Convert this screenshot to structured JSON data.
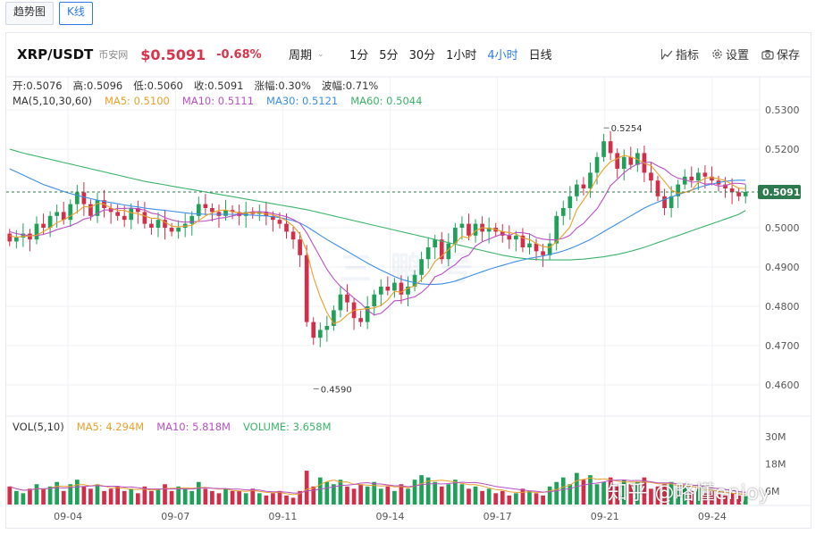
{
  "tabs": [
    {
      "label": "趋势图",
      "active": false
    },
    {
      "label": "K线",
      "active": true
    }
  ],
  "header": {
    "symbol": "XRP/USDT",
    "exchange": "币安网",
    "price": "$0.5091",
    "change": "-0.68%",
    "period_label": "周期",
    "intervals": [
      {
        "label": "1分",
        "active": false
      },
      {
        "label": "5分",
        "active": false
      },
      {
        "label": "30分",
        "active": false
      },
      {
        "label": "1小时",
        "active": false
      },
      {
        "label": "4小时",
        "active": true
      },
      {
        "label": "日线",
        "active": false
      }
    ],
    "tools": [
      {
        "label": "指标",
        "icon": "chart-line-icon"
      },
      {
        "label": "设置",
        "icon": "gear-icon"
      },
      {
        "label": "保存",
        "icon": "camera-icon"
      }
    ]
  },
  "ohlc": [
    {
      "label": "开:0.5076"
    },
    {
      "label": "高:0.5096"
    },
    {
      "label": "低:0.5060"
    },
    {
      "label": "收:0.5091"
    },
    {
      "label": "涨幅:0.30%"
    },
    {
      "label": "波幅:0.71%"
    }
  ],
  "ma_legend": [
    {
      "label": "MA(5,10,30,60)",
      "color": "#333333"
    },
    {
      "label": "MA5: 0.5100",
      "color": "#e8a02b"
    },
    {
      "label": "MA10: 0.5111",
      "color": "#b94fc4"
    },
    {
      "label": "MA30: 0.5121",
      "color": "#3d8ee3"
    },
    {
      "label": "MA60: 0.5044",
      "color": "#3bb36a"
    }
  ],
  "vol_legend": [
    {
      "label": "VOL(5,10)",
      "color": "#333333"
    },
    {
      "label": "MA5: 4.294M",
      "color": "#e8a02b"
    },
    {
      "label": "MA10: 5.818M",
      "color": "#b94fc4"
    },
    {
      "label": "VOLUME: 3.658M",
      "color": "#3bb36a"
    }
  ],
  "background_mark": "三 鹏 号",
  "watermark": "知乎 @略懂enjoy",
  "colors": {
    "up": "#21a05a",
    "down": "#d22e4a",
    "ma5": "#e8a02b",
    "ma10": "#b94fc4",
    "ma30": "#3d8ee3",
    "ma60": "#3bb36a",
    "current": "#2c7a4d"
  },
  "chart_data": {
    "type": "candlestick",
    "title": "XRP/USDT 4小时",
    "x_tick_labels": [
      "09-04",
      "09-07",
      "09-11",
      "09-14",
      "09-17",
      "09-21",
      "09-24"
    ],
    "y_ticks": [
      "0.5300",
      "0.5200",
      "0.5100",
      "0.5000",
      "0.4900",
      "0.4800",
      "0.4700",
      "0.4600"
    ],
    "ylim": [
      0.456,
      0.534
    ],
    "current_price_label": "0.5091",
    "current_price": 0.5091,
    "high_annotation": {
      "label": "0.5254",
      "value": 0.5254
    },
    "low_annotation": {
      "label": "0.4590",
      "value": 0.459
    },
    "volume_ticks": [
      "30M",
      "18M",
      "6M"
    ],
    "volume_ylim": [
      0,
      36
    ],
    "closes": [
      0.4965,
      0.4975,
      0.4985,
      0.497,
      0.501,
      0.5,
      0.503,
      0.504,
      0.502,
      0.506,
      0.509,
      0.506,
      0.503,
      0.507,
      0.505,
      0.504,
      0.503,
      0.502,
      0.505,
      0.504,
      0.501,
      0.5,
      0.502,
      0.5,
      0.499,
      0.5,
      0.501,
      0.503,
      0.506,
      0.505,
      0.504,
      0.503,
      0.5045,
      0.504,
      0.503,
      0.504,
      0.5035,
      0.504,
      0.503,
      0.502,
      0.501,
      0.499,
      0.497,
      0.493,
      0.476,
      0.472,
      0.474,
      0.475,
      0.479,
      0.483,
      0.481,
      0.477,
      0.476,
      0.48,
      0.483,
      0.485,
      0.484,
      0.486,
      0.483,
      0.485,
      0.488,
      0.492,
      0.495,
      0.497,
      0.492,
      0.496,
      0.5,
      0.501,
      0.498,
      0.501,
      0.499,
      0.5,
      0.499,
      0.498,
      0.497,
      0.498,
      0.495,
      0.496,
      0.494,
      0.493,
      0.496,
      0.503,
      0.505,
      0.508,
      0.511,
      0.51,
      0.514,
      0.518,
      0.522,
      0.519,
      0.515,
      0.518,
      0.516,
      0.519,
      0.514,
      0.512,
      0.508,
      0.505,
      0.508,
      0.511,
      0.513,
      0.512,
      0.514,
      0.513,
      0.512,
      0.511,
      0.51,
      0.509,
      0.508,
      0.5091
    ],
    "volumes": [
      8,
      6,
      5,
      7,
      9,
      7,
      8,
      10,
      6,
      9,
      11,
      8,
      7,
      9,
      6,
      7,
      8,
      6,
      7,
      5,
      8,
      6,
      7,
      9,
      6,
      8,
      7,
      6,
      10,
      7,
      6,
      5,
      7,
      6,
      6,
      5,
      7,
      5,
      4,
      5,
      6,
      4,
      3,
      6,
      15,
      8,
      12,
      10,
      9,
      11,
      8,
      7,
      9,
      8,
      10,
      7,
      8,
      6,
      9,
      7,
      11,
      13,
      12,
      10,
      8,
      9,
      11,
      9,
      7,
      8,
      6,
      7,
      5,
      6,
      4,
      5,
      7,
      6,
      5,
      4,
      8,
      10,
      12,
      9,
      14,
      11,
      13,
      9,
      10,
      12,
      8,
      11,
      9,
      10,
      12,
      7,
      8,
      9,
      10,
      7,
      8,
      6,
      7,
      5,
      6,
      5,
      4,
      5,
      4,
      3.7
    ],
    "ma5": [
      0.498,
      0.4976,
      0.4978,
      0.4979,
      0.4981,
      0.499,
      0.5,
      0.5013,
      0.502,
      0.503,
      0.504,
      0.5054,
      0.5052,
      0.5062,
      0.506,
      0.505,
      0.5044,
      0.5044,
      0.5038,
      0.5036,
      0.503,
      0.5024,
      0.5024,
      0.5014,
      0.5004,
      0.5002,
      0.5004,
      0.5006,
      0.5018,
      0.503,
      0.5038,
      0.5044,
      0.5045,
      0.5041,
      0.5038,
      0.5037,
      0.5038,
      0.5038,
      0.5035,
      0.5033,
      0.5027,
      0.5018,
      0.5004,
      0.4984,
      0.494,
      0.4874,
      0.4824,
      0.4784,
      0.4756,
      0.4762,
      0.4778,
      0.479,
      0.4792,
      0.4794,
      0.4796,
      0.4802,
      0.4816,
      0.4838,
      0.4836,
      0.4846,
      0.4852,
      0.4868,
      0.4886,
      0.4914,
      0.4928,
      0.4944,
      0.496,
      0.4978,
      0.4974,
      0.4992,
      0.5,
      0.4998,
      0.4996,
      0.499,
      0.4988,
      0.4984,
      0.4974,
      0.497,
      0.496,
      0.4952,
      0.495,
      0.4964,
      0.4982,
      0.5002,
      0.5046,
      0.507,
      0.5096,
      0.5126,
      0.515,
      0.5168,
      0.5176,
      0.5184,
      0.518,
      0.5174,
      0.5164,
      0.5158,
      0.5138,
      0.5118,
      0.5096,
      0.5088,
      0.509,
      0.5094,
      0.5116,
      0.5126,
      0.5128,
      0.5124,
      0.512,
      0.511,
      0.51,
      0.51
    ],
    "ma10": [
      0.499,
      0.4985,
      0.4982,
      0.498,
      0.498,
      0.4983,
      0.4988,
      0.4995,
      0.5,
      0.5005,
      0.5012,
      0.5022,
      0.5026,
      0.5037,
      0.5045,
      0.5045,
      0.5049,
      0.5049,
      0.505,
      0.5048,
      0.5045,
      0.5037,
      0.5034,
      0.5026,
      0.502,
      0.5016,
      0.5014,
      0.5015,
      0.5016,
      0.5017,
      0.502,
      0.5024,
      0.5026,
      0.503,
      0.5034,
      0.5037,
      0.5041,
      0.5041,
      0.504,
      0.5036,
      0.5032,
      0.5028,
      0.5021,
      0.5011,
      0.4987,
      0.4956,
      0.4925,
      0.4894,
      0.487,
      0.4851,
      0.4836,
      0.4821,
      0.4808,
      0.479,
      0.4778,
      0.4782,
      0.4797,
      0.4814,
      0.4815,
      0.482,
      0.4824,
      0.4835,
      0.4851,
      0.4875,
      0.4882,
      0.4895,
      0.4906,
      0.4923,
      0.493,
      0.4953,
      0.4964,
      0.4971,
      0.4978,
      0.4984,
      0.498,
      0.4988,
      0.4987,
      0.4984,
      0.4975,
      0.4971,
      0.4969,
      0.4969,
      0.4973,
      0.4981,
      0.4999,
      0.5011,
      0.503,
      0.5048,
      0.5076,
      0.5107,
      0.5123,
      0.514,
      0.5153,
      0.5162,
      0.5166,
      0.5167,
      0.5157,
      0.5149,
      0.5135,
      0.5126,
      0.5123,
      0.5116,
      0.5117,
      0.5111,
      0.5112,
      0.5106,
      0.5107,
      0.5113,
      0.5113,
      0.5111
    ],
    "ma30": [
      0.515,
      0.5142,
      0.5134,
      0.5126,
      0.5118,
      0.511,
      0.5104,
      0.5098,
      0.5092,
      0.5087,
      0.5082,
      0.5078,
      0.5074,
      0.507,
      0.5067,
      0.5064,
      0.5061,
      0.5058,
      0.5055,
      0.5053,
      0.505,
      0.5048,
      0.5046,
      0.5044,
      0.5042,
      0.504,
      0.5038,
      0.5036,
      0.5035,
      0.5034,
      0.5034,
      0.5034,
      0.5034,
      0.5034,
      0.5034,
      0.5033,
      0.5032,
      0.5031,
      0.503,
      0.5028,
      0.5026,
      0.5022,
      0.5018,
      0.5012,
      0.5003,
      0.4992,
      0.4981,
      0.497,
      0.496,
      0.495,
      0.494,
      0.493,
      0.492,
      0.491,
      0.4901,
      0.4892,
      0.4884,
      0.4876,
      0.4869,
      0.4864,
      0.486,
      0.4857,
      0.4856,
      0.4856,
      0.4857,
      0.486,
      0.4864,
      0.487,
      0.4876,
      0.4882,
      0.4888,
      0.4894,
      0.4899,
      0.4904,
      0.4909,
      0.4914,
      0.4918,
      0.4922,
      0.4925,
      0.4928,
      0.4932,
      0.4936,
      0.4941,
      0.4947,
      0.4954,
      0.4962,
      0.497,
      0.498,
      0.499,
      0.5,
      0.501,
      0.502,
      0.503,
      0.504,
      0.505,
      0.5058,
      0.5065,
      0.5072,
      0.5078,
      0.5084,
      0.509,
      0.5096,
      0.5102,
      0.5107,
      0.5111,
      0.5115,
      0.5118,
      0.512,
      0.5121,
      0.5121
    ],
    "ma60": [
      0.52,
      0.5195,
      0.519,
      0.5186,
      0.5182,
      0.5178,
      0.5174,
      0.517,
      0.5166,
      0.5162,
      0.5158,
      0.5154,
      0.515,
      0.5146,
      0.5142,
      0.5138,
      0.5134,
      0.513,
      0.5126,
      0.5122,
      0.5118,
      0.5115,
      0.5112,
      0.5109,
      0.5106,
      0.5103,
      0.51,
      0.5097,
      0.5094,
      0.5091,
      0.5088,
      0.5085,
      0.5082,
      0.5079,
      0.5076,
      0.5073,
      0.507,
      0.5067,
      0.5064,
      0.5061,
      0.5058,
      0.5055,
      0.5052,
      0.5049,
      0.5046,
      0.5042,
      0.5038,
      0.5034,
      0.503,
      0.5026,
      0.5022,
      0.5018,
      0.5014,
      0.501,
      0.5006,
      0.5002,
      0.4998,
      0.4994,
      0.499,
      0.4986,
      0.4982,
      0.4978,
      0.4974,
      0.497,
      0.4966,
      0.4962,
      0.4958,
      0.4954,
      0.495,
      0.4946,
      0.4942,
      0.4938,
      0.4934,
      0.493,
      0.4927,
      0.4924,
      0.4922,
      0.492,
      0.4919,
      0.4918,
      0.4918,
      0.4918,
      0.4918,
      0.4918,
      0.4919,
      0.492,
      0.4922,
      0.4924,
      0.4926,
      0.4929,
      0.4932,
      0.4936,
      0.494,
      0.4945,
      0.495,
      0.4956,
      0.4962,
      0.4968,
      0.4974,
      0.498,
      0.4986,
      0.4992,
      0.4998,
      0.5004,
      0.501,
      0.5016,
      0.5022,
      0.5028,
      0.5034,
      0.5044
    ]
  }
}
